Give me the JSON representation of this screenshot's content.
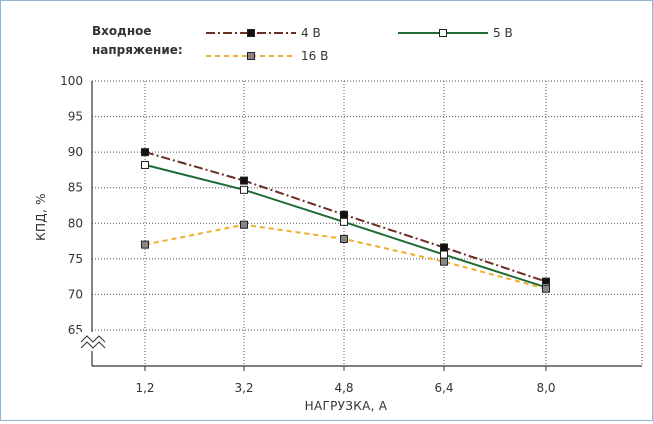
{
  "chart_data": {
    "type": "line",
    "legend_title_lines": [
      "Входное",
      "напряжение:"
    ],
    "xlabel": "НАГРУЗКА, А",
    "ylabel": "КПД, %",
    "categories": [
      "1,2",
      "3,2",
      "4,8",
      "6,4",
      "8,0"
    ],
    "yticks": [
      "65",
      "70",
      "75",
      "80",
      "85",
      "90",
      "95",
      "100"
    ],
    "ylim": [
      65,
      100
    ],
    "grid": "dotted",
    "legend_position": "top",
    "axis_break": "y",
    "series": [
      {
        "name": "4 В",
        "values": [
          90.0,
          86.0,
          81.2,
          76.6,
          71.8
        ],
        "color": "#6b2e22",
        "dash": "dash-dot",
        "marker_fill": "#111111"
      },
      {
        "name": "5 В",
        "values": [
          88.2,
          84.7,
          80.2,
          75.6,
          71.0
        ],
        "color": "#1f6b35",
        "dash": "solid",
        "marker_fill": "#ffffff"
      },
      {
        "name": "16 В",
        "values": [
          77.0,
          79.8,
          77.8,
          74.6,
          70.8
        ],
        "color": "#f0ad2e",
        "dash": "dashed",
        "marker_fill": "#888888"
      }
    ]
  }
}
